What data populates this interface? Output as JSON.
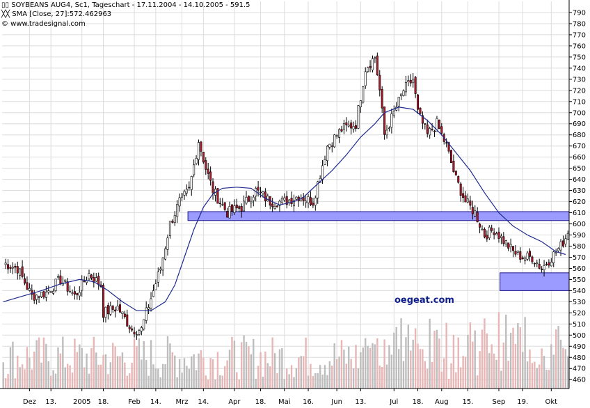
{
  "header": {
    "title": "SOYBEANS AUG4, Sc1, Tageschart - 17.11.2004 - 14.10.2005 - 591.5",
    "sma_label": "SMA [Close, 27]:572.462963",
    "copyright": "© www.tradesignal.com"
  },
  "watermark": "oegeat.com",
  "colors": {
    "background": "#ffffff",
    "grid": "#dcdcdc",
    "candle_up": "#ffffff",
    "candle_down": "#b2182b",
    "wick": "#000000",
    "sma": "#1f2a8f",
    "zone_fill": "#9a9aff",
    "volume_up": "#bdbdbd",
    "volume_down": "#e7b6b6"
  },
  "chart_data": {
    "type": "candlestick",
    "title": "SOYBEANS AUG4, Sc1, Tageschart - 17.11.2004 - 14.10.2005 - 591.5",
    "period": "17.11.2004 - 14.10.2005",
    "last_value": 591.5,
    "y_axis": {
      "ticks": [
        460,
        470,
        480,
        490,
        500,
        510,
        520,
        530,
        540,
        550,
        560,
        570,
        580,
        590,
        600,
        610,
        620,
        630,
        640,
        650,
        660,
        670,
        680,
        690,
        700,
        710,
        720,
        730,
        740,
        750,
        760,
        770,
        780,
        790
      ],
      "ylim": [
        452,
        800
      ]
    },
    "x_axis": {
      "ticks": [
        {
          "i": 11,
          "label": "Dez"
        },
        {
          "i": 20,
          "label": "13."
        },
        {
          "i": 33,
          "label": "2005"
        },
        {
          "i": 42,
          "label": "18."
        },
        {
          "i": 55,
          "label": "Feb"
        },
        {
          "i": 64,
          "label": "14."
        },
        {
          "i": 75,
          "label": "Mrz"
        },
        {
          "i": 84,
          "label": "14."
        },
        {
          "i": 97,
          "label": "Apr"
        },
        {
          "i": 108,
          "label": "18."
        },
        {
          "i": 118,
          "label": "Mai"
        },
        {
          "i": 128,
          "label": "16."
        },
        {
          "i": 140,
          "label": "Jun"
        },
        {
          "i": 150,
          "label": "13."
        },
        {
          "i": 164,
          "label": "Jul"
        },
        {
          "i": 174,
          "label": "18."
        },
        {
          "i": 184,
          "label": "Aug"
        },
        {
          "i": 195,
          "label": "15."
        },
        {
          "i": 208,
          "label": "Sep"
        },
        {
          "i": 218,
          "label": "19."
        },
        {
          "i": 230,
          "label": "Okt"
        }
      ],
      "n_bars": 238
    },
    "closes_anchor": [
      [
        0,
        565
      ],
      [
        6,
        560
      ],
      [
        12,
        535
      ],
      [
        18,
        538
      ],
      [
        24,
        550
      ],
      [
        30,
        535
      ],
      [
        36,
        555
      ],
      [
        41,
        545
      ],
      [
        42,
        520
      ],
      [
        48,
        525
      ],
      [
        54,
        505
      ],
      [
        58,
        505
      ],
      [
        60,
        520
      ],
      [
        63,
        540
      ],
      [
        66,
        560
      ],
      [
        70,
        600
      ],
      [
        74,
        620
      ],
      [
        78,
        630
      ],
      [
        82,
        675
      ],
      [
        85,
        650
      ],
      [
        88,
        630
      ],
      [
        94,
        610
      ],
      [
        100,
        615
      ],
      [
        106,
        630
      ],
      [
        112,
        620
      ],
      [
        118,
        620
      ],
      [
        124,
        625
      ],
      [
        130,
        620
      ],
      [
        136,
        670
      ],
      [
        142,
        685
      ],
      [
        148,
        690
      ],
      [
        152,
        740
      ],
      [
        156,
        750
      ],
      [
        158,
        720
      ],
      [
        160,
        680
      ],
      [
        164,
        700
      ],
      [
        168,
        720
      ],
      [
        172,
        730
      ],
      [
        174,
        700
      ],
      [
        178,
        680
      ],
      [
        182,
        690
      ],
      [
        186,
        670
      ],
      [
        190,
        640
      ],
      [
        194,
        620
      ],
      [
        198,
        610
      ],
      [
        202,
        590
      ],
      [
        206,
        595
      ],
      [
        210,
        585
      ],
      [
        214,
        575
      ],
      [
        218,
        570
      ],
      [
        222,
        570
      ],
      [
        226,
        560
      ],
      [
        230,
        570
      ],
      [
        234,
        580
      ],
      [
        237,
        591.5
      ]
    ],
    "sma": {
      "name": "SMA [Close, 27]",
      "last": 572.462963,
      "points": [
        [
          0,
          530
        ],
        [
          8,
          535
        ],
        [
          16,
          540
        ],
        [
          24,
          546
        ],
        [
          32,
          550
        ],
        [
          38,
          548
        ],
        [
          44,
          540
        ],
        [
          50,
          530
        ],
        [
          56,
          522
        ],
        [
          62,
          522
        ],
        [
          68,
          530
        ],
        [
          72,
          545
        ],
        [
          76,
          570
        ],
        [
          80,
          595
        ],
        [
          84,
          615
        ],
        [
          88,
          627
        ],
        [
          92,
          632
        ],
        [
          98,
          633
        ],
        [
          104,
          632
        ],
        [
          110,
          623
        ],
        [
          116,
          617
        ],
        [
          122,
          620
        ],
        [
          126,
          624
        ],
        [
          132,
          636
        ],
        [
          138,
          648
        ],
        [
          144,
          662
        ],
        [
          150,
          678
        ],
        [
          156,
          690
        ],
        [
          160,
          700
        ],
        [
          166,
          705
        ],
        [
          172,
          703
        ],
        [
          178,
          693
        ],
        [
          184,
          680
        ],
        [
          190,
          664
        ],
        [
          196,
          648
        ],
        [
          202,
          628
        ],
        [
          208,
          610
        ],
        [
          214,
          598
        ],
        [
          220,
          590
        ],
        [
          226,
          584
        ],
        [
          232,
          575
        ],
        [
          236,
          572.5
        ]
      ]
    },
    "zones": [
      {
        "from_i": 78,
        "to_i": 237,
        "low": 603,
        "high": 611
      },
      {
        "from_i": 209,
        "to_i": 237,
        "low": 540,
        "high": 556
      }
    ],
    "volume_scale": {
      "min": 455,
      "height_units": 70
    }
  }
}
